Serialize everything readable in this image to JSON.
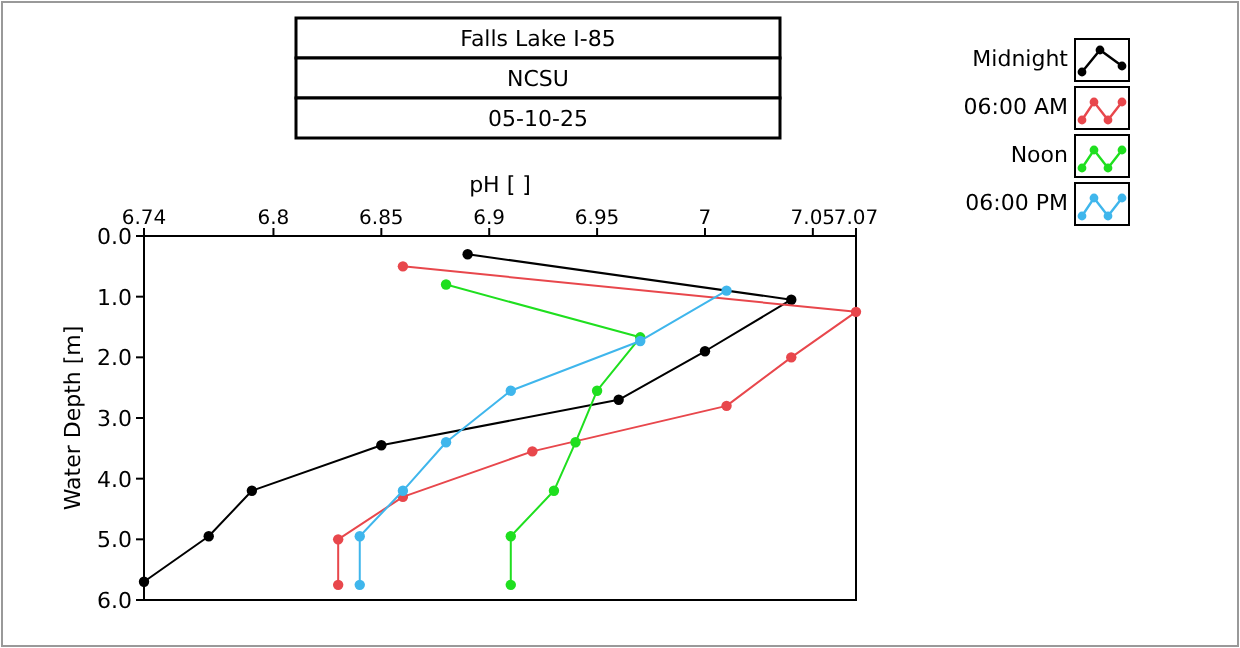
{
  "chart_data": {
    "type": "line",
    "title": "Falls Lake I-85",
    "subtitle": "NCSU",
    "annotations": [
      "05-10-25"
    ],
    "xlabel": "pH [ ]",
    "ylabel": "Water Depth [m]",
    "xlim": [
      6.74,
      7.07
    ],
    "xticks": [
      6.74,
      6.8,
      6.85,
      6.9,
      6.95,
      7,
      7.05,
      7.07
    ],
    "ylim": [
      6,
      0
    ],
    "yticks": [
      {
        "value": 0,
        "label": "0.0"
      },
      {
        "value": 1,
        "label": "1.0"
      },
      {
        "value": 2,
        "label": "2.0"
      },
      {
        "value": 3,
        "label": "3.0"
      },
      {
        "value": 4,
        "label": "4.0"
      },
      {
        "value": 5,
        "label": "5.0"
      },
      {
        "value": 6,
        "label": "6.0"
      }
    ],
    "marker": "circle",
    "line_style": "solid",
    "grid": false,
    "legend": "top right",
    "series": [
      {
        "name": "Midnight",
        "color": "#000000",
        "x": [
          6.89,
          7.04,
          7.0,
          6.96,
          6.85,
          6.79,
          6.77,
          6.74
        ],
        "values": [
          0.3,
          1.05,
          1.9,
          2.7,
          3.45,
          4.2,
          4.95,
          5.7
        ]
      },
      {
        "name": "06:00 AM",
        "color": "#e8474c",
        "x": [
          6.86,
          7.07,
          7.04,
          7.01,
          6.92,
          6.86,
          6.83,
          6.83
        ],
        "values": [
          0.5,
          1.25,
          2.0,
          2.8,
          3.55,
          4.3,
          5.0,
          5.75
        ]
      },
      {
        "name": "Noon",
        "color": "#1fdf1f",
        "x": [
          6.88,
          6.97,
          6.95,
          6.94,
          6.93,
          6.91,
          6.91
        ],
        "values": [
          0.8,
          1.67,
          2.55,
          3.4,
          4.2,
          4.95,
          5.75
        ]
      },
      {
        "name": "06:00 PM",
        "color": "#3fb6ec",
        "x": [
          7.01,
          6.97,
          6.91,
          6.88,
          6.86,
          6.84,
          6.84
        ],
        "values": [
          0.9,
          1.73,
          2.55,
          3.4,
          4.2,
          4.95,
          5.75
        ]
      }
    ]
  }
}
